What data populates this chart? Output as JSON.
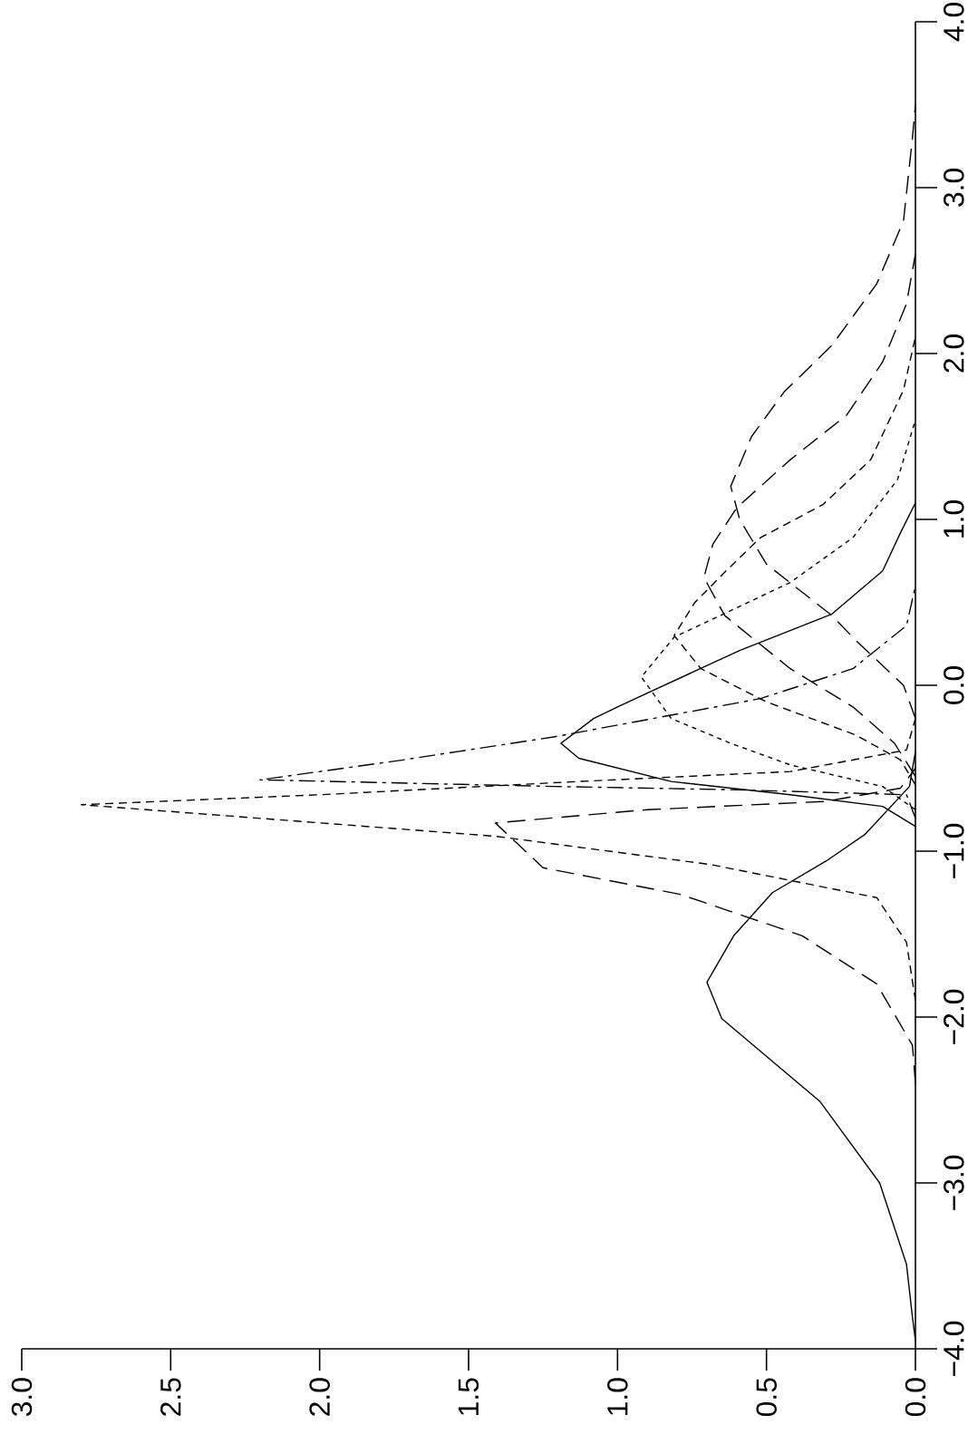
{
  "chart_data": {
    "type": "line",
    "xlim": [
      3,
      0
    ],
    "ylim": [
      -4,
      4
    ],
    "xticks": [
      {
        "value": 0,
        "label": "0.0"
      },
      {
        "value": 0.5,
        "label": "0.5"
      },
      {
        "value": 1,
        "label": "1.0"
      },
      {
        "value": 1.5,
        "label": "1.5"
      },
      {
        "value": 2,
        "label": "2.0"
      },
      {
        "value": 2.5,
        "label": "2.5"
      },
      {
        "value": 3,
        "label": "3.0"
      }
    ],
    "yticks": [
      {
        "value": -4,
        "label": "−4.0"
      },
      {
        "value": -3,
        "label": "−3.0"
      },
      {
        "value": -2,
        "label": "−2.0"
      },
      {
        "value": -1,
        "label": "−1.0"
      },
      {
        "value": 0,
        "label": "0.0"
      },
      {
        "value": 1,
        "label": "1.0"
      },
      {
        "value": 2,
        "label": "2.0"
      },
      {
        "value": 3,
        "label": "3.0"
      },
      {
        "value": 4,
        "label": "4.0"
      }
    ],
    "series": [
      {
        "color": "#000000",
        "line_style": "solid",
        "values": [
          -3.95,
          -3.81,
          -3.49,
          -3.0,
          -2.51,
          -2.01,
          -1.79,
          -1.51,
          -1.25,
          -1.06,
          -0.9,
          -0.61,
          -0.4
        ],
        "x": [
          0,
          0.01,
          0.03,
          0.12,
          0.32,
          0.65,
          0.7,
          0.61,
          0.48,
          0.3,
          0.17,
          0.02,
          0
        ]
      },
      {
        "color": "#000000",
        "line_style": "long dashed",
        "values": [
          -2.4,
          -2.17,
          -1.8,
          -1.51,
          -1.26,
          -1.1,
          -0.83,
          -0.75,
          -0.7,
          -0.62,
          -0.5
        ],
        "x": [
          0,
          0.01,
          0.13,
          0.38,
          0.79,
          1.25,
          1.41,
          0.9,
          0.3,
          0.05,
          0
        ]
      },
      {
        "color": "#000000",
        "line_style": "dashed",
        "values": [
          -1.9,
          -1.55,
          -1.28,
          -1.08,
          -0.91,
          -0.72,
          -0.66,
          -0.58,
          -0.52,
          -0.39,
          -0.2
        ],
        "x": [
          0,
          0.03,
          0.13,
          0.69,
          1.41,
          2.8,
          2.0,
          1.13,
          0.42,
          0.03,
          0
        ]
      },
      {
        "color": "#000000",
        "line_style": "dashdot",
        "values": [
          -0.8,
          -0.66,
          -0.63,
          -0.61,
          -0.57,
          -0.45,
          -0.31,
          -0.08,
          0.1,
          0.36,
          0.6
        ],
        "x": [
          0,
          0.03,
          0.6,
          1.21,
          2.2,
          1.72,
          1.21,
          0.52,
          0.21,
          0.03,
          0
        ]
      },
      {
        "color": "#000000",
        "line_style": "solid",
        "values": [
          -0.85,
          -0.73,
          -0.66,
          -0.58,
          -0.44,
          -0.35,
          -0.2,
          -0.13,
          0.21,
          0.43,
          0.69,
          0.92,
          1.1
        ],
        "x": [
          0,
          0.11,
          0.42,
          0.82,
          1.13,
          1.19,
          1.08,
          1.0,
          0.59,
          0.28,
          0.11,
          0.05,
          0
        ]
      },
      {
        "color": "#000000",
        "line_style": "dotted",
        "values": [
          -0.75,
          -0.61,
          -0.48,
          -0.35,
          -0.2,
          0.05,
          0.29,
          0.45,
          0.62,
          0.89,
          1.24,
          1.6
        ],
        "x": [
          0,
          0.11,
          0.42,
          0.62,
          0.82,
          0.92,
          0.81,
          0.62,
          0.42,
          0.21,
          0.06,
          0
        ]
      },
      {
        "color": "#000000",
        "line_style": "dashed",
        "values": [
          -0.6,
          -0.45,
          -0.3,
          -0.1,
          0.1,
          0.3,
          0.5,
          0.7,
          0.89,
          1.09,
          1.36,
          1.78,
          2.1
        ],
        "x": [
          0,
          0.05,
          0.2,
          0.5,
          0.72,
          0.81,
          0.74,
          0.63,
          0.52,
          0.31,
          0.15,
          0.04,
          0
        ]
      },
      {
        "color": "#000000",
        "line_style": "long dashed",
        "values": [
          -0.55,
          -0.35,
          -0.13,
          0.1,
          0.42,
          0.65,
          0.85,
          1.07,
          1.36,
          1.63,
          1.95,
          2.3,
          2.6
        ],
        "x": [
          0,
          0.07,
          0.21,
          0.42,
          0.64,
          0.71,
          0.68,
          0.6,
          0.42,
          0.23,
          0.11,
          0.03,
          0
        ]
      },
      {
        "color": "#000000",
        "line_style": "long dashed",
        "values": [
          -0.2,
          0.0,
          0.27,
          0.42,
          0.73,
          1.0,
          1.2,
          1.5,
          1.77,
          2.05,
          2.42,
          2.8,
          3.3,
          3.5
        ],
        "x": [
          0,
          0.04,
          0.2,
          0.28,
          0.5,
          0.59,
          0.62,
          0.55,
          0.44,
          0.28,
          0.13,
          0.04,
          0.01,
          0
        ]
      }
    ]
  }
}
